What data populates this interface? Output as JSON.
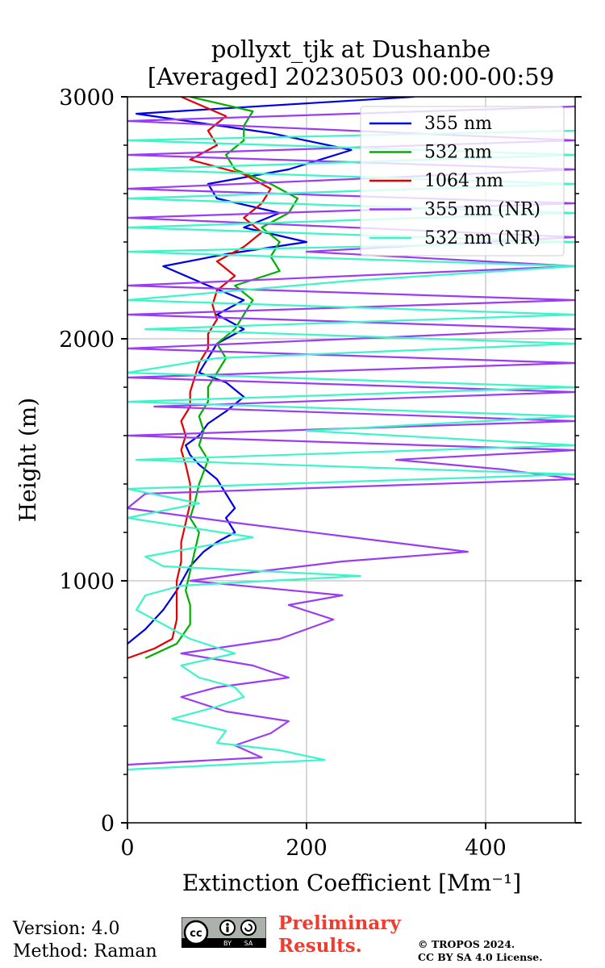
{
  "chart_data": {
    "type": "line",
    "title": [
      "pollyxt_tjk at Dushanbe",
      "[Averaged] 20230503 00:00-00:59"
    ],
    "xlabel": "Extinction Coefficient [Mm⁻¹]",
    "ylabel": "Height (m)",
    "xlim": [
      0,
      500
    ],
    "ylim": [
      0,
      3000
    ],
    "xticks": [
      0,
      200,
      400
    ],
    "yticks": [
      0,
      1000,
      2000,
      3000
    ],
    "grid": true,
    "legend_position": "top-right",
    "series": [
      {
        "name": "355 nm",
        "color": "#0000e6",
        "points": [
          [
            0,
            740
          ],
          [
            20,
            800
          ],
          [
            40,
            880
          ],
          [
            55,
            960
          ],
          [
            70,
            1060
          ],
          [
            85,
            1120
          ],
          [
            100,
            1160
          ],
          [
            120,
            1200
          ],
          [
            110,
            1260
          ],
          [
            120,
            1300
          ],
          [
            110,
            1360
          ],
          [
            100,
            1420
          ],
          [
            80,
            1480
          ],
          [
            70,
            1520
          ],
          [
            65,
            1560
          ],
          [
            80,
            1600
          ],
          [
            90,
            1650
          ],
          [
            110,
            1700
          ],
          [
            130,
            1760
          ],
          [
            110,
            1820
          ],
          [
            80,
            1860
          ],
          [
            90,
            1920
          ],
          [
            100,
            1980
          ],
          [
            130,
            2040
          ],
          [
            100,
            2100
          ],
          [
            130,
            2160
          ],
          [
            90,
            2220
          ],
          [
            40,
            2300
          ],
          [
            110,
            2350
          ],
          [
            200,
            2400
          ],
          [
            130,
            2460
          ],
          [
            170,
            2520
          ],
          [
            100,
            2580
          ],
          [
            90,
            2640
          ],
          [
            180,
            2700
          ],
          [
            250,
            2780
          ],
          [
            160,
            2850
          ],
          [
            10,
            2930
          ],
          [
            320,
            3000
          ]
        ]
      },
      {
        "name": "532 nm",
        "color": "#00b000",
        "points": [
          [
            20,
            680
          ],
          [
            55,
            740
          ],
          [
            70,
            820
          ],
          [
            70,
            900
          ],
          [
            65,
            960
          ],
          [
            70,
            1040
          ],
          [
            75,
            1120
          ],
          [
            80,
            1200
          ],
          [
            70,
            1260
          ],
          [
            75,
            1320
          ],
          [
            80,
            1400
          ],
          [
            85,
            1450
          ],
          [
            90,
            1500
          ],
          [
            80,
            1560
          ],
          [
            85,
            1620
          ],
          [
            80,
            1680
          ],
          [
            90,
            1740
          ],
          [
            90,
            1800
          ],
          [
            100,
            1860
          ],
          [
            110,
            1920
          ],
          [
            100,
            1980
          ],
          [
            120,
            2040
          ],
          [
            130,
            2100
          ],
          [
            140,
            2160
          ],
          [
            120,
            2220
          ],
          [
            170,
            2280
          ],
          [
            160,
            2340
          ],
          [
            170,
            2400
          ],
          [
            150,
            2460
          ],
          [
            180,
            2520
          ],
          [
            190,
            2580
          ],
          [
            160,
            2640
          ],
          [
            120,
            2700
          ],
          [
            110,
            2760
          ],
          [
            130,
            2820
          ],
          [
            130,
            2880
          ],
          [
            140,
            2940
          ],
          [
            70,
            3000
          ]
        ]
      },
      {
        "name": "1064 nm",
        "color": "#e60000",
        "points": [
          [
            0,
            680
          ],
          [
            30,
            720
          ],
          [
            50,
            760
          ],
          [
            55,
            840
          ],
          [
            55,
            920
          ],
          [
            55,
            1000
          ],
          [
            60,
            1080
          ],
          [
            60,
            1160
          ],
          [
            65,
            1240
          ],
          [
            70,
            1320
          ],
          [
            70,
            1400
          ],
          [
            65,
            1480
          ],
          [
            60,
            1540
          ],
          [
            65,
            1600
          ],
          [
            60,
            1660
          ],
          [
            70,
            1720
          ],
          [
            70,
            1780
          ],
          [
            75,
            1840
          ],
          [
            80,
            1900
          ],
          [
            90,
            1960
          ],
          [
            90,
            2020
          ],
          [
            100,
            2080
          ],
          [
            95,
            2140
          ],
          [
            100,
            2200
          ],
          [
            120,
            2260
          ],
          [
            100,
            2320
          ],
          [
            130,
            2380
          ],
          [
            150,
            2440
          ],
          [
            130,
            2500
          ],
          [
            150,
            2560
          ],
          [
            160,
            2620
          ],
          [
            130,
            2680
          ],
          [
            70,
            2740
          ],
          [
            100,
            2800
          ],
          [
            90,
            2860
          ],
          [
            110,
            2920
          ],
          [
            60,
            3000
          ]
        ]
      },
      {
        "name": "355 nm (NR)",
        "color": "#9b3cf5",
        "points": [
          [
            0,
            240
          ],
          [
            150,
            270
          ],
          [
            120,
            320
          ],
          [
            160,
            370
          ],
          [
            180,
            420
          ],
          [
            110,
            460
          ],
          [
            60,
            520
          ],
          [
            100,
            560
          ],
          [
            180,
            600
          ],
          [
            140,
            650
          ],
          [
            60,
            700
          ],
          [
            170,
            760
          ],
          [
            200,
            800
          ],
          [
            230,
            840
          ],
          [
            180,
            900
          ],
          [
            240,
            940
          ],
          [
            70,
            1000
          ],
          [
            150,
            1040
          ],
          [
            240,
            1080
          ],
          [
            380,
            1120
          ],
          [
            250,
            1180
          ],
          [
            120,
            1240
          ],
          [
            0,
            1300
          ],
          [
            20,
            1360
          ],
          [
            500,
            1420
          ],
          [
            420,
            1460
          ],
          [
            300,
            1500
          ],
          [
            500,
            1540
          ],
          [
            0,
            1600
          ],
          [
            500,
            1660
          ],
          [
            30,
            1720
          ],
          [
            500,
            1780
          ],
          [
            0,
            1840
          ],
          [
            500,
            1900
          ],
          [
            0,
            1960
          ],
          [
            500,
            2040
          ],
          [
            0,
            2100
          ],
          [
            500,
            2160
          ],
          [
            0,
            2220
          ],
          [
            500,
            2300
          ],
          [
            200,
            2360
          ],
          [
            500,
            2420
          ],
          [
            0,
            2500
          ],
          [
            500,
            2560
          ],
          [
            0,
            2620
          ],
          [
            500,
            2700
          ],
          [
            0,
            2760
          ],
          [
            500,
            2820
          ],
          [
            0,
            2900
          ],
          [
            500,
            2960
          ]
        ]
      },
      {
        "name": "532 nm (NR)",
        "color": "#3cf5c8",
        "points": [
          [
            0,
            220
          ],
          [
            220,
            260
          ],
          [
            170,
            300
          ],
          [
            100,
            330
          ],
          [
            110,
            380
          ],
          [
            50,
            430
          ],
          [
            100,
            480
          ],
          [
            130,
            520
          ],
          [
            120,
            560
          ],
          [
            80,
            600
          ],
          [
            60,
            650
          ],
          [
            120,
            700
          ],
          [
            70,
            760
          ],
          [
            40,
            820
          ],
          [
            10,
            880
          ],
          [
            20,
            940
          ],
          [
            60,
            980
          ],
          [
            260,
            1020
          ],
          [
            40,
            1060
          ],
          [
            20,
            1100
          ],
          [
            140,
            1180
          ],
          [
            0,
            1260
          ],
          [
            80,
            1320
          ],
          [
            0,
            1380
          ],
          [
            500,
            1440
          ],
          [
            10,
            1500
          ],
          [
            500,
            1560
          ],
          [
            200,
            1620
          ],
          [
            500,
            1680
          ],
          [
            0,
            1740
          ],
          [
            500,
            1800
          ],
          [
            0,
            1860
          ],
          [
            100,
            1920
          ],
          [
            500,
            1980
          ],
          [
            20,
            2040
          ],
          [
            500,
            2100
          ],
          [
            0,
            2160
          ],
          [
            250,
            2240
          ],
          [
            500,
            2300
          ],
          [
            0,
            2360
          ],
          [
            500,
            2400
          ],
          [
            0,
            2460
          ],
          [
            500,
            2520
          ],
          [
            0,
            2580
          ],
          [
            500,
            2640
          ],
          [
            0,
            2700
          ],
          [
            500,
            2760
          ],
          [
            0,
            2820
          ],
          [
            500,
            2860
          ]
        ]
      }
    ]
  },
  "footer": {
    "version": "Version: 4.0",
    "method": "Method: Raman",
    "preliminary": [
      "Preliminary",
      "Results."
    ],
    "copyright": [
      "© TROPOS 2024.",
      "CC BY SA 4.0 License."
    ],
    "license_badge": [
      "cc",
      "BY",
      "SA"
    ]
  }
}
